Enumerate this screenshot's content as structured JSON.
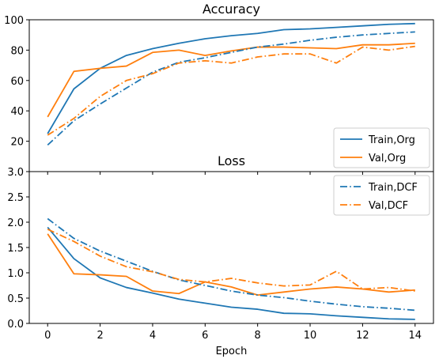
{
  "chart_data": [
    {
      "type": "line",
      "title": "Accuracy",
      "xlabel": "",
      "ylabel": "",
      "x": [
        0,
        1,
        2,
        3,
        4,
        5,
        6,
        7,
        8,
        9,
        10,
        11,
        12,
        13,
        14
      ],
      "xlim": [
        -0.7,
        14.7
      ],
      "ylim": [
        0,
        100
      ],
      "yticks": [
        0,
        20,
        40,
        60,
        80,
        100
      ],
      "ytick_labels": [
        "",
        "20",
        "40",
        "60",
        "80",
        "100"
      ],
      "xticks": [
        0,
        2,
        4,
        6,
        8,
        10,
        12,
        14
      ],
      "xtick_labels": [],
      "grid": false,
      "legend_position": "bottom-right",
      "legend_series": [
        0,
        1
      ],
      "series": [
        {
          "name": "Train,Org",
          "color": "#1f77b4",
          "dash": "solid",
          "values": [
            25,
            54.5,
            68,
            76.5,
            81,
            84.5,
            87.5,
            89.5,
            91,
            93.5,
            94,
            95,
            96,
            97,
            97.5
          ]
        },
        {
          "name": "Val,Org",
          "color": "#ff7f0e",
          "dash": "solid",
          "values": [
            36,
            66,
            68,
            69.5,
            78.5,
            80,
            76.5,
            79.5,
            82,
            82,
            81.5,
            81,
            83.5,
            83.5,
            84.5
          ]
        },
        {
          "name": "Train,DCF",
          "color": "#1f77b4",
          "dash": "dashdot",
          "values": [
            17.5,
            33.5,
            44.5,
            55,
            65.5,
            72,
            75,
            78.5,
            82,
            84,
            86.5,
            88.5,
            90,
            91,
            92
          ]
        },
        {
          "name": "Val,DCF",
          "color": "#ff7f0e",
          "dash": "dashdot",
          "values": [
            24,
            35,
            49.5,
            60,
            64.5,
            71.5,
            73,
            71.5,
            75.5,
            77.5,
            77.5,
            71.5,
            82,
            80,
            82.5
          ]
        }
      ]
    },
    {
      "type": "line",
      "title": "Loss",
      "xlabel": "Epoch",
      "ylabel": "",
      "x": [
        0,
        1,
        2,
        3,
        4,
        5,
        6,
        7,
        8,
        9,
        10,
        11,
        12,
        13,
        14
      ],
      "xlim": [
        -0.7,
        14.7
      ],
      "ylim": [
        0,
        3
      ],
      "yticks": [
        0,
        0.5,
        1,
        1.5,
        2,
        2.5,
        3
      ],
      "ytick_labels": [
        "0.0",
        "0.5",
        "1.0",
        "1.5",
        "2.0",
        "2.5",
        "3.0"
      ],
      "xticks": [
        0,
        2,
        4,
        6,
        8,
        10,
        12,
        14
      ],
      "xtick_labels": [
        "0",
        "2",
        "4",
        "6",
        "8",
        "10",
        "12",
        "14"
      ],
      "grid": false,
      "legend_position": "top-right",
      "legend_series": [
        2,
        3
      ],
      "series": [
        {
          "name": "Train,Org",
          "color": "#1f77b4",
          "dash": "solid",
          "values": [
            1.9,
            1.28,
            0.9,
            0.71,
            0.6,
            0.48,
            0.4,
            0.32,
            0.28,
            0.2,
            0.19,
            0.15,
            0.12,
            0.09,
            0.08
          ]
        },
        {
          "name": "Val,Org",
          "color": "#ff7f0e",
          "dash": "solid",
          "values": [
            1.77,
            0.98,
            0.96,
            0.93,
            0.64,
            0.59,
            0.82,
            0.72,
            0.56,
            0.62,
            0.68,
            0.72,
            0.68,
            0.62,
            0.66
          ]
        },
        {
          "name": "Train,DCF",
          "color": "#1f77b4",
          "dash": "dashdot",
          "values": [
            2.07,
            1.68,
            1.43,
            1.23,
            1.03,
            0.86,
            0.75,
            0.64,
            0.56,
            0.51,
            0.44,
            0.38,
            0.33,
            0.3,
            0.26
          ]
        },
        {
          "name": "Val,DCF",
          "color": "#ff7f0e",
          "dash": "dashdot",
          "values": [
            1.86,
            1.62,
            1.33,
            1.12,
            1.02,
            0.87,
            0.82,
            0.89,
            0.8,
            0.74,
            0.76,
            1.03,
            0.68,
            0.71,
            0.64
          ]
        }
      ]
    }
  ]
}
